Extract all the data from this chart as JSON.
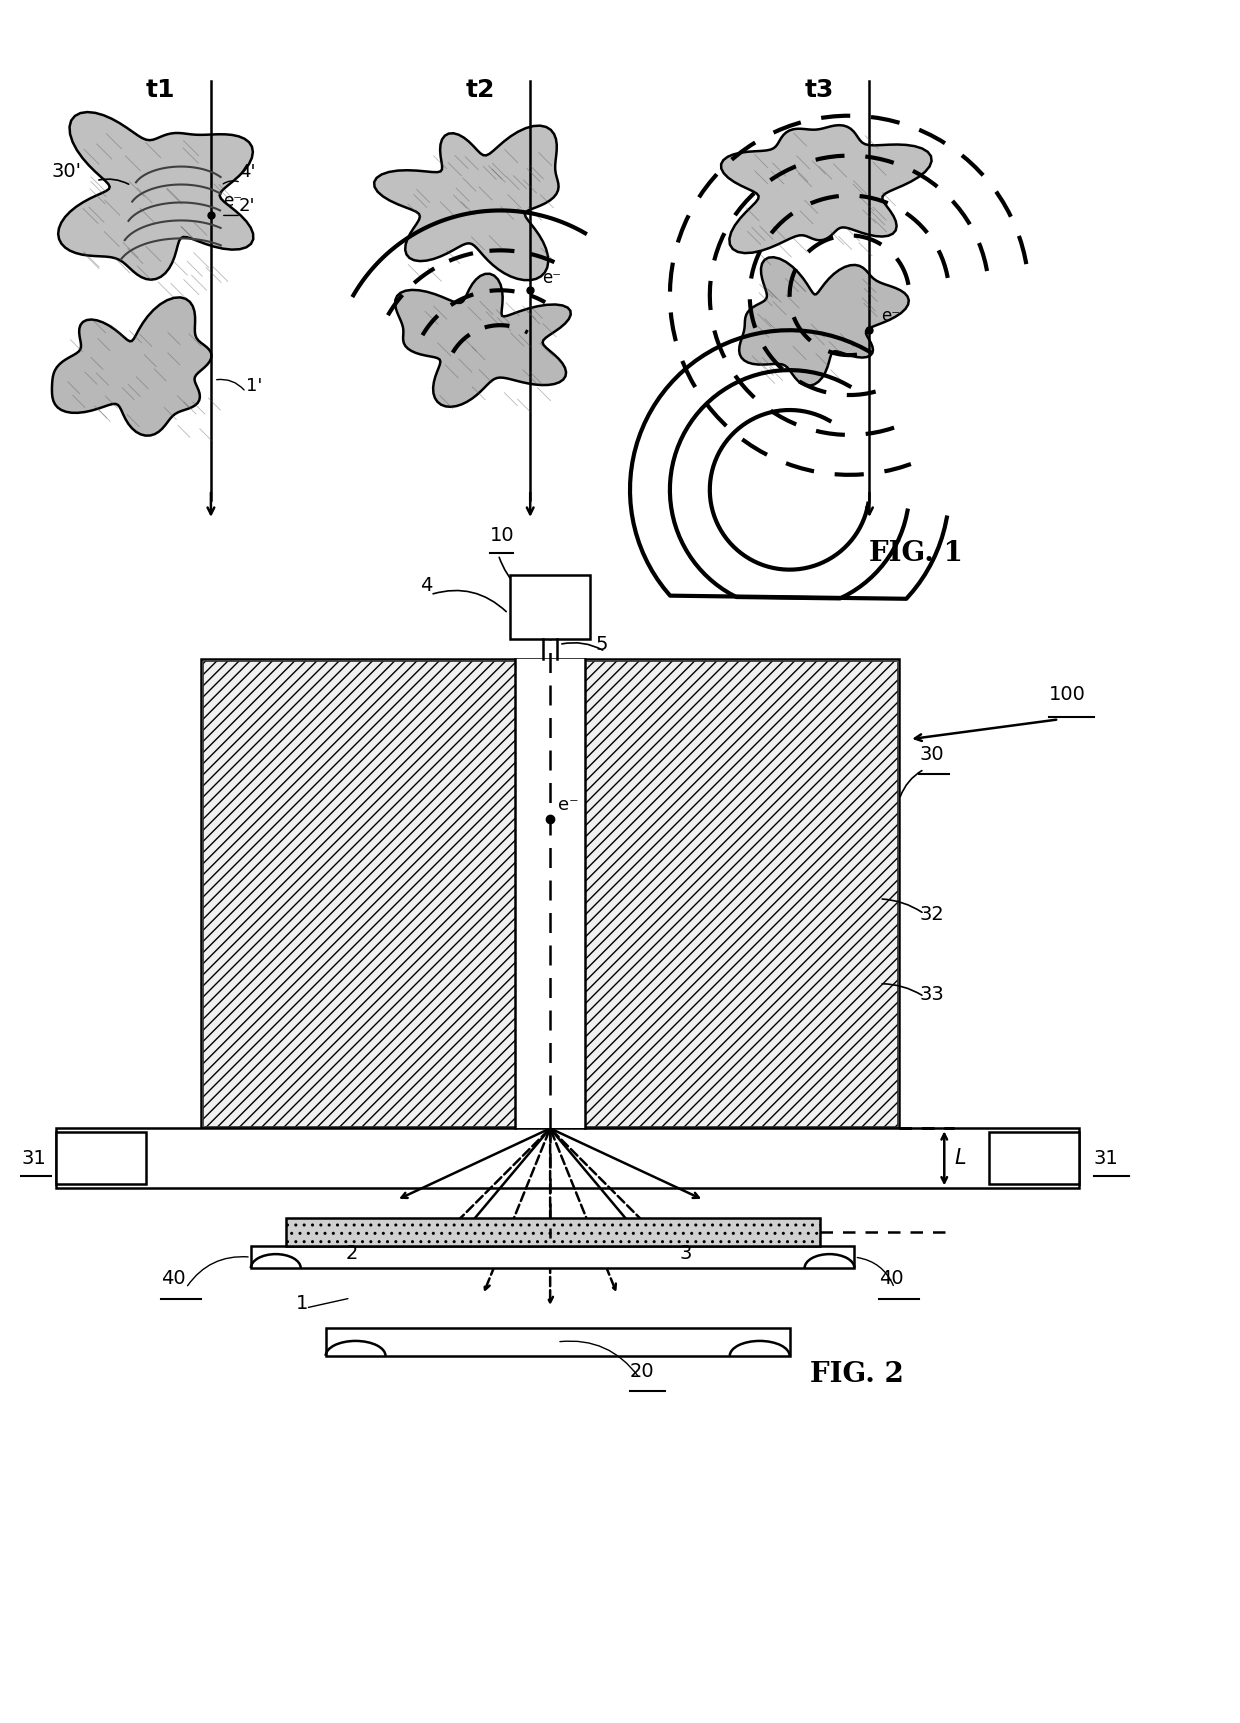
{
  "fig_width": 12.4,
  "fig_height": 17.24,
  "bg_color": "#ffffff",
  "line_color": "#000000",
  "fig1_label": "FIG. 1",
  "fig2_label": "FIG. 2",
  "t_labels": [
    "t1",
    "t2",
    "t3"
  ],
  "ref_labels": {
    "30prime": "30'",
    "4prime": "4'",
    "2prime": "2'",
    "1prime": "1'",
    "num_10": "10",
    "num_4": "4",
    "num_5": "5",
    "num_30": "30",
    "num_32": "32",
    "num_33": "33",
    "num_31": "31",
    "num_2": "2",
    "num_3": "3",
    "num_1": "1",
    "num_L": "L",
    "num_40": "40",
    "num_20": "20",
    "num_100": "100"
  }
}
